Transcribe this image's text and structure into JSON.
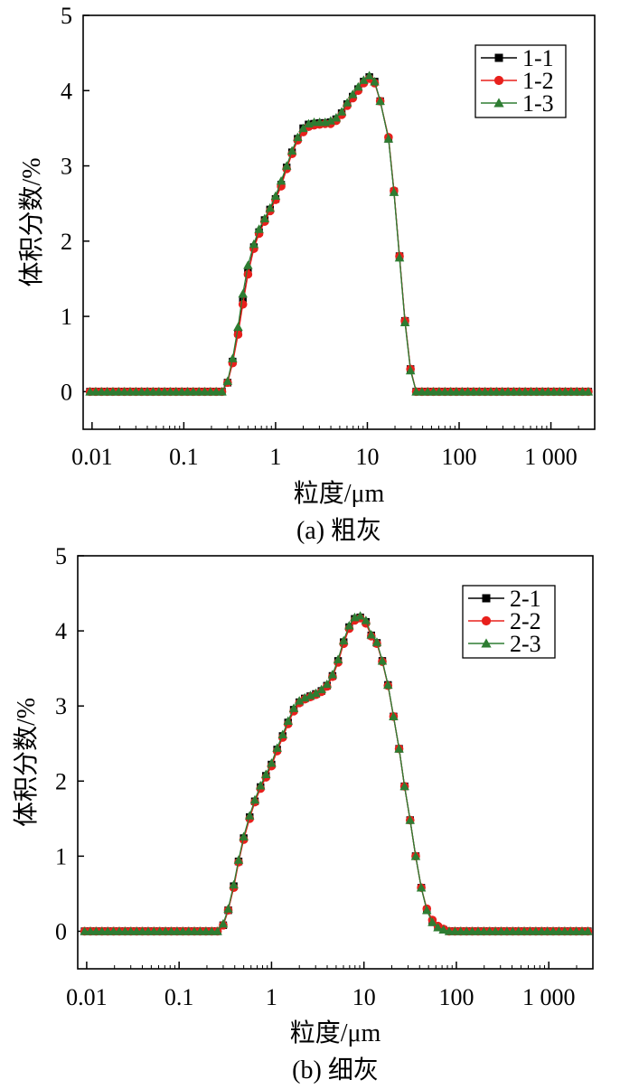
{
  "chart_data": [
    {
      "type": "line",
      "caption": "(a) 粗灰",
      "xlabel": "粒度/μm",
      "ylabel": "体积分数/%",
      "xscale": "log",
      "xlim": [
        0.008,
        3000
      ],
      "ylim": [
        -0.5,
        5
      ],
      "xticks": [
        0.01,
        0.1,
        1,
        10,
        100,
        1000
      ],
      "xtick_labels": [
        "0.01",
        "0.1",
        "1",
        "10",
        "100",
        "1 000"
      ],
      "yticks": [
        0,
        1,
        2,
        3,
        4,
        5
      ],
      "ytick_labels": [
        "0",
        "1",
        "2",
        "3",
        "4",
        "5"
      ],
      "grid": false,
      "legend_position": "top-right",
      "series": [
        {
          "name": "1-1",
          "color": "#000000",
          "marker": "square",
          "points": [
            [
              0.3,
              0.12
            ],
            [
              0.34,
              0.4
            ],
            [
              0.39,
              0.78
            ],
            [
              0.44,
              1.2
            ],
            [
              0.5,
              1.58
            ],
            [
              0.58,
              1.92
            ],
            [
              0.66,
              2.12
            ],
            [
              0.76,
              2.28
            ],
            [
              0.87,
              2.42
            ],
            [
              1.0,
              2.56
            ],
            [
              1.15,
              2.75
            ],
            [
              1.32,
              2.98
            ],
            [
              1.51,
              3.18
            ],
            [
              1.74,
              3.36
            ],
            [
              2.0,
              3.5
            ],
            [
              2.29,
              3.55
            ],
            [
              2.63,
              3.56
            ],
            [
              3.02,
              3.57
            ],
            [
              3.47,
              3.57
            ],
            [
              3.98,
              3.58
            ],
            [
              4.57,
              3.62
            ],
            [
              5.25,
              3.7
            ],
            [
              6.03,
              3.82
            ],
            [
              6.92,
              3.92
            ],
            [
              7.94,
              4.02
            ],
            [
              9.12,
              4.12
            ],
            [
              10.5,
              4.18
            ],
            [
              12.0,
              4.12
            ],
            [
              13.8,
              3.86
            ],
            [
              17.0,
              3.36
            ],
            [
              19.5,
              2.66
            ],
            [
              22.4,
              1.8
            ],
            [
              25.7,
              0.94
            ],
            [
              29.5,
              0.3
            ]
          ]
        },
        {
          "name": "1-2",
          "color": "#e8201c",
          "marker": "circle",
          "points": [
            [
              0.3,
              0.12
            ],
            [
              0.34,
              0.38
            ],
            [
              0.39,
              0.76
            ],
            [
              0.44,
              1.16
            ],
            [
              0.5,
              1.56
            ],
            [
              0.58,
              1.9
            ],
            [
              0.66,
              2.1
            ],
            [
              0.76,
              2.26
            ],
            [
              0.87,
              2.4
            ],
            [
              1.0,
              2.55
            ],
            [
              1.15,
              2.73
            ],
            [
              1.32,
              2.96
            ],
            [
              1.51,
              3.16
            ],
            [
              1.74,
              3.34
            ],
            [
              2.0,
              3.45
            ],
            [
              2.29,
              3.52
            ],
            [
              2.63,
              3.54
            ],
            [
              3.02,
              3.55
            ],
            [
              3.47,
              3.56
            ],
            [
              3.98,
              3.56
            ],
            [
              4.57,
              3.6
            ],
            [
              5.25,
              3.68
            ],
            [
              6.03,
              3.8
            ],
            [
              6.92,
              3.9
            ],
            [
              7.94,
              4.0
            ],
            [
              9.12,
              4.1
            ],
            [
              10.5,
              4.16
            ],
            [
              12.0,
              4.1
            ],
            [
              13.8,
              3.86
            ],
            [
              17.0,
              3.38
            ],
            [
              19.5,
              2.67
            ],
            [
              22.4,
              1.8
            ],
            [
              25.7,
              0.94
            ],
            [
              29.5,
              0.3
            ]
          ]
        },
        {
          "name": "1-3",
          "color": "#2e7d32",
          "marker": "triangle",
          "points": [
            [
              0.3,
              0.14
            ],
            [
              0.34,
              0.44
            ],
            [
              0.39,
              0.86
            ],
            [
              0.44,
              1.3
            ],
            [
              0.5,
              1.68
            ],
            [
              0.58,
              1.96
            ],
            [
              0.66,
              2.16
            ],
            [
              0.76,
              2.3
            ],
            [
              0.87,
              2.44
            ],
            [
              1.0,
              2.6
            ],
            [
              1.15,
              2.8
            ],
            [
              1.32,
              3.0
            ],
            [
              1.51,
              3.2
            ],
            [
              1.74,
              3.38
            ],
            [
              2.0,
              3.5
            ],
            [
              2.29,
              3.56
            ],
            [
              2.63,
              3.58
            ],
            [
              3.02,
              3.58
            ],
            [
              3.47,
              3.58
            ],
            [
              3.98,
              3.6
            ],
            [
              4.57,
              3.64
            ],
            [
              5.25,
              3.72
            ],
            [
              6.03,
              3.84
            ],
            [
              6.92,
              3.95
            ],
            [
              7.94,
              4.05
            ],
            [
              9.12,
              4.14
            ],
            [
              10.5,
              4.2
            ],
            [
              12.0,
              4.12
            ],
            [
              13.8,
              3.86
            ],
            [
              17.0,
              3.36
            ],
            [
              19.5,
              2.65
            ],
            [
              22.4,
              1.78
            ],
            [
              25.7,
              0.92
            ],
            [
              29.5,
              0.28
            ]
          ]
        }
      ]
    },
    {
      "type": "line",
      "caption": "(b) 细灰",
      "xlabel": "粒度/μm",
      "ylabel": "体积分数/%",
      "xscale": "log",
      "xlim": [
        0.008,
        3000
      ],
      "ylim": [
        -0.5,
        5
      ],
      "xticks": [
        0.01,
        0.1,
        1,
        10,
        100,
        1000
      ],
      "xtick_labels": [
        "0.01",
        "0.1",
        "1",
        "10",
        "100",
        "1 000"
      ],
      "yticks": [
        0,
        1,
        2,
        3,
        4,
        5
      ],
      "ytick_labels": [
        "0",
        "1",
        "2",
        "3",
        "4",
        "5"
      ],
      "grid": false,
      "legend_position": "top-right",
      "series": [
        {
          "name": "2-1",
          "color": "#000000",
          "marker": "square",
          "points": [
            [
              0.3,
              0.08
            ],
            [
              0.34,
              0.28
            ],
            [
              0.39,
              0.6
            ],
            [
              0.44,
              0.93
            ],
            [
              0.5,
              1.24
            ],
            [
              0.58,
              1.52
            ],
            [
              0.66,
              1.73
            ],
            [
              0.76,
              1.92
            ],
            [
              0.87,
              2.07
            ],
            [
              1.0,
              2.22
            ],
            [
              1.15,
              2.42
            ],
            [
              1.32,
              2.6
            ],
            [
              1.51,
              2.78
            ],
            [
              1.74,
              2.95
            ],
            [
              2.0,
              3.05
            ],
            [
              2.29,
              3.1
            ],
            [
              2.63,
              3.13
            ],
            [
              3.02,
              3.16
            ],
            [
              3.47,
              3.2
            ],
            [
              3.98,
              3.27
            ],
            [
              4.57,
              3.4
            ],
            [
              5.25,
              3.6
            ],
            [
              6.03,
              3.85
            ],
            [
              6.92,
              4.05
            ],
            [
              7.94,
              4.16
            ],
            [
              9.12,
              4.18
            ],
            [
              10.5,
              4.12
            ],
            [
              12.0,
              3.94
            ],
            [
              13.8,
              3.84
            ],
            [
              15.8,
              3.6
            ],
            [
              18.2,
              3.28
            ],
            [
              20.9,
              2.86
            ],
            [
              24.0,
              2.43
            ],
            [
              27.5,
              1.93
            ],
            [
              31.6,
              1.48
            ],
            [
              36.3,
              1.0
            ],
            [
              41.7,
              0.58
            ],
            [
              47.9,
              0.28
            ],
            [
              55.0,
              0.12
            ],
            [
              63.1,
              0.05
            ],
            [
              72.4,
              0.02
            ]
          ]
        },
        {
          "name": "2-2",
          "color": "#e8201c",
          "marker": "circle",
          "points": [
            [
              0.3,
              0.08
            ],
            [
              0.34,
              0.28
            ],
            [
              0.39,
              0.58
            ],
            [
              0.44,
              0.92
            ],
            [
              0.5,
              1.22
            ],
            [
              0.58,
              1.5
            ],
            [
              0.66,
              1.72
            ],
            [
              0.76,
              1.9
            ],
            [
              0.87,
              2.05
            ],
            [
              1.0,
              2.2
            ],
            [
              1.15,
              2.4
            ],
            [
              1.32,
              2.58
            ],
            [
              1.51,
              2.76
            ],
            [
              1.74,
              2.93
            ],
            [
              2.0,
              3.04
            ],
            [
              2.29,
              3.09
            ],
            [
              2.63,
              3.12
            ],
            [
              3.02,
              3.15
            ],
            [
              3.47,
              3.19
            ],
            [
              3.98,
              3.26
            ],
            [
              4.57,
              3.39
            ],
            [
              5.25,
              3.58
            ],
            [
              6.03,
              3.83
            ],
            [
              6.92,
              4.03
            ],
            [
              7.94,
              4.14
            ],
            [
              9.12,
              4.17
            ],
            [
              10.5,
              4.1
            ],
            [
              12.0,
              3.93
            ],
            [
              13.8,
              3.83
            ],
            [
              15.8,
              3.59
            ],
            [
              18.2,
              3.27
            ],
            [
              20.9,
              2.86
            ],
            [
              24.0,
              2.43
            ],
            [
              27.5,
              1.93
            ],
            [
              31.6,
              1.48
            ],
            [
              36.3,
              1.0
            ],
            [
              41.7,
              0.58
            ],
            [
              47.9,
              0.3
            ],
            [
              55.0,
              0.15
            ],
            [
              63.1,
              0.07
            ],
            [
              72.4,
              0.03
            ]
          ]
        },
        {
          "name": "2-3",
          "color": "#2e7d32",
          "marker": "triangle",
          "points": [
            [
              0.3,
              0.1
            ],
            [
              0.34,
              0.3
            ],
            [
              0.39,
              0.62
            ],
            [
              0.44,
              0.95
            ],
            [
              0.5,
              1.26
            ],
            [
              0.58,
              1.54
            ],
            [
              0.66,
              1.75
            ],
            [
              0.76,
              1.94
            ],
            [
              0.87,
              2.09
            ],
            [
              1.0,
              2.24
            ],
            [
              1.15,
              2.44
            ],
            [
              1.32,
              2.62
            ],
            [
              1.51,
              2.8
            ],
            [
              1.74,
              2.97
            ],
            [
              2.0,
              3.07
            ],
            [
              2.29,
              3.11
            ],
            [
              2.63,
              3.14
            ],
            [
              3.02,
              3.17
            ],
            [
              3.47,
              3.22
            ],
            [
              3.98,
              3.29
            ],
            [
              4.57,
              3.42
            ],
            [
              5.25,
              3.62
            ],
            [
              6.03,
              3.87
            ],
            [
              6.92,
              4.07
            ],
            [
              7.94,
              4.18
            ],
            [
              9.12,
              4.2
            ],
            [
              10.5,
              4.14
            ],
            [
              12.0,
              3.95
            ],
            [
              13.8,
              3.85
            ],
            [
              15.8,
              3.6
            ],
            [
              18.2,
              3.28
            ],
            [
              20.9,
              2.86
            ],
            [
              24.0,
              2.43
            ],
            [
              27.5,
              1.93
            ],
            [
              31.6,
              1.48
            ],
            [
              36.3,
              1.0
            ],
            [
              41.7,
              0.58
            ],
            [
              47.9,
              0.28
            ],
            [
              55.0,
              0.12
            ],
            [
              63.1,
              0.05
            ],
            [
              72.4,
              0.02
            ]
          ]
        }
      ]
    }
  ]
}
